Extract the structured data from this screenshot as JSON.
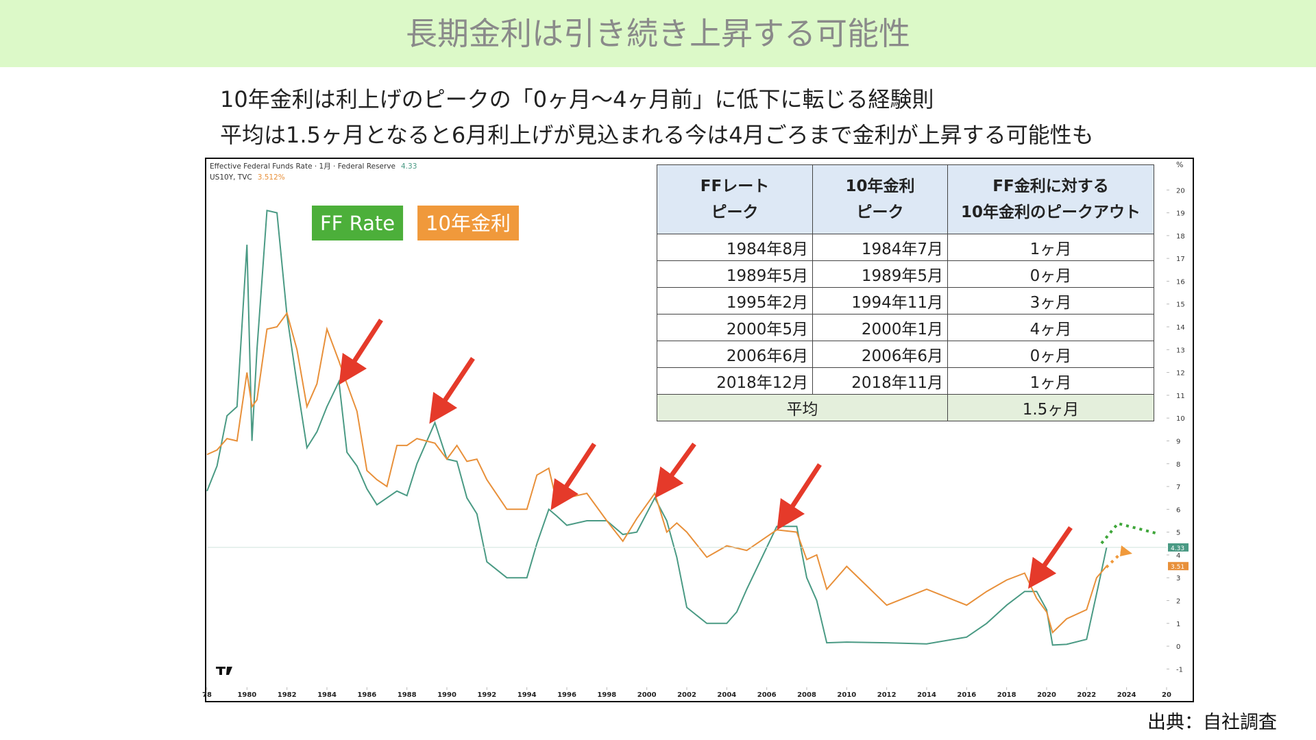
{
  "header": {
    "title": "長期金利は引き続き上昇する可能性"
  },
  "subtitle": [
    "10年金利は利上げのピークの「0ヶ月〜4ヶ月前」に低下に転じる経験則",
    "平均は1.5ヶ月となると6月利上げが見込まれる今は4月ごろまで金利が上昇する可能性も"
  ],
  "chart_data": {
    "type": "line",
    "info": [
      {
        "text": "Effective Federal Funds Rate · 1月 · Federal Reserve",
        "value": "4.33"
      },
      {
        "text": "US10Y, TVC",
        "value": "3.512%"
      }
    ],
    "y_unit": "%",
    "x": [
      1978,
      1978.5,
      1979,
      1979.5,
      1980,
      1980.25,
      1980.5,
      1981,
      1981.5,
      1982,
      1982.5,
      1983,
      1983.5,
      1984,
      1984.6,
      1985,
      1985.5,
      1986,
      1986.5,
      1987,
      1987.5,
      1988,
      1988.5,
      1989.4,
      1990,
      1990.5,
      1991,
      1991.5,
      1992,
      1993,
      1994,
      1994.5,
      1995.1,
      1995.5,
      1996,
      1997,
      1998,
      1998.8,
      1999.5,
      2000.4,
      2001,
      2001.5,
      2002,
      2003,
      2004,
      2004.5,
      2005,
      2006.5,
      2007.5,
      2008,
      2008.5,
      2009,
      2010,
      2012,
      2014,
      2016,
      2017,
      2018,
      2018.9,
      2019.5,
      2020,
      2020.3,
      2021,
      2022,
      2022.5,
      2023
    ],
    "series": [
      {
        "name": "FF Rate",
        "color": "#4a9a84",
        "legend_color": "#4caf3a",
        "last_label": "4.33",
        "values": [
          6.8,
          7.9,
          10.1,
          10.5,
          17.6,
          9.0,
          13.0,
          19.1,
          19.0,
          14.5,
          11.5,
          8.7,
          9.4,
          10.5,
          11.6,
          8.5,
          7.9,
          6.9,
          6.2,
          6.5,
          6.8,
          6.6,
          8.0,
          9.8,
          8.2,
          8.1,
          6.5,
          5.8,
          3.7,
          3.0,
          3.0,
          4.5,
          6.0,
          5.7,
          5.3,
          5.5,
          5.5,
          4.9,
          5.0,
          6.5,
          5.5,
          3.9,
          1.7,
          1.0,
          1.0,
          1.5,
          2.5,
          5.25,
          5.25,
          3.0,
          2.0,
          0.15,
          0.18,
          0.15,
          0.1,
          0.4,
          1.0,
          1.8,
          2.4,
          2.4,
          1.6,
          0.05,
          0.08,
          0.3,
          2.3,
          4.33
        ]
      },
      {
        "name": "10年金利",
        "color": "#e8903a",
        "legend_color": "#f0993b",
        "last_label": "3.51",
        "values": [
          8.4,
          8.6,
          9.1,
          9.0,
          12.0,
          10.5,
          10.8,
          13.9,
          14.0,
          14.6,
          13.0,
          10.5,
          11.5,
          13.9,
          12.5,
          11.5,
          10.3,
          7.7,
          7.3,
          7.0,
          8.8,
          8.8,
          9.1,
          8.9,
          8.2,
          8.8,
          8.1,
          8.2,
          7.3,
          6.0,
          6.0,
          7.5,
          7.8,
          6.3,
          6.5,
          6.7,
          5.5,
          4.6,
          5.6,
          6.7,
          5.0,
          5.4,
          5.0,
          3.9,
          4.4,
          4.3,
          4.2,
          5.1,
          5.0,
          3.8,
          4.0,
          2.5,
          3.5,
          1.8,
          2.5,
          1.8,
          2.4,
          2.9,
          3.2,
          2.1,
          1.5,
          0.6,
          1.2,
          1.6,
          3.0,
          3.51
        ]
      }
    ],
    "xlim": [
      1978,
      2026
    ],
    "xticks": [
      {
        "value": 1978,
        "label": "78"
      },
      1980,
      1982,
      1984,
      1986,
      1988,
      1990,
      1992,
      1994,
      1996,
      1998,
      2000,
      2002,
      2004,
      2006,
      2008,
      2010,
      2012,
      2014,
      2016,
      2018,
      2020,
      2022,
      2024,
      {
        "value": 2026,
        "label": "20"
      }
    ],
    "ylim": [
      -1.8,
      21.3
    ],
    "yticks": [
      -1,
      0,
      1,
      2,
      3,
      4,
      5,
      6,
      7,
      8,
      9,
      10,
      11,
      12,
      13,
      14,
      15,
      16,
      17,
      18,
      19,
      20
    ]
  },
  "table": {
    "header": [
      [
        "FFレート",
        "ピーク"
      ],
      [
        "10年金利",
        "ピーク"
      ],
      [
        "FF金利に対する",
        "10年金利のピークアウト"
      ]
    ],
    "rows": [
      [
        "1984年8月",
        "1984年7月",
        "1ヶ月"
      ],
      [
        "1989年5月",
        "1989年5月",
        "0ヶ月"
      ],
      [
        "1995年2月",
        "1994年11月",
        "3ヶ月"
      ],
      [
        "2000年5月",
        "2000年1月",
        "4ヶ月"
      ],
      [
        "2006年6月",
        "2006年6月",
        "0ヶ月"
      ],
      [
        "2018年12月",
        "2018年11月",
        "1ヶ月"
      ]
    ],
    "average": [
      "平均",
      "1.5ヶ月"
    ]
  },
  "source": "出典：自社調査"
}
